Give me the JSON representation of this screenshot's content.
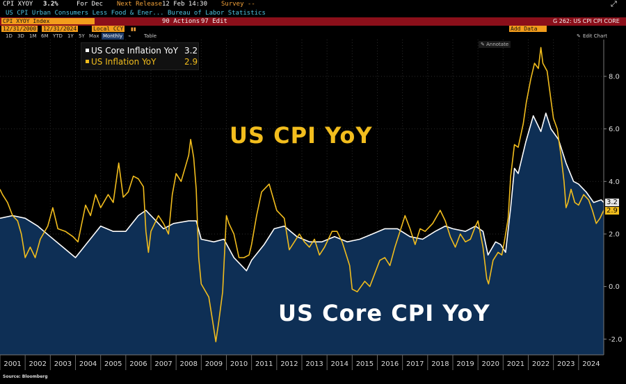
{
  "header": {
    "ticker": "CPI XYOY",
    "value": "3.2%",
    "period": "For Dec",
    "next_release_label": "Next Release",
    "next_release": "12 Feb 14:30",
    "survey": "Survey --",
    "description": "US CPI Urban Consumers Less Food & Ener...",
    "source": "Bureau of Labor Statistics",
    "security": "CPI XYOY Index",
    "actions": "90 Actions",
    "edit": "97 Edit",
    "page": "G 262: US CPI CPI CORE",
    "start_date": "12/31/2000",
    "end_date": "12/31/2024",
    "currency": "Local CCY",
    "add_data": "Add Data",
    "annotate": "Annotate",
    "edit_chart": "Edit Chart",
    "range_buttons": [
      "1D",
      "3D",
      "1M",
      "6M",
      "YTD",
      "1Y",
      "5Y",
      "Max"
    ],
    "frequency": "Monthly",
    "table": "Table"
  },
  "annotations": {
    "headline": "US CPI YoY",
    "core": "US Core CPI YoY"
  },
  "source_note": "Source: Bloomberg",
  "colors": {
    "headline": "#f2bd1d",
    "core_line": "#ffffff",
    "core_fill": "#0e2f55",
    "header_red": "#8b0f1a"
  },
  "chart_data": {
    "type": "line",
    "ylim": [
      -2.6,
      9.4
    ],
    "yticks": [
      "-2.0",
      "0.0",
      "2.0",
      "4.0",
      "6.0",
      "8.0"
    ],
    "ytick_values": [
      -2,
      0,
      2,
      4,
      6,
      8
    ],
    "xlim": [
      2001.0,
      2025.0
    ],
    "years": [
      "2001",
      "2002",
      "2003",
      "2004",
      "2005",
      "2006",
      "2007",
      "2008",
      "2009",
      "2010",
      "2011",
      "2012",
      "2013",
      "2014",
      "2015",
      "2016",
      "2017",
      "2018",
      "2019",
      "2020",
      "2021",
      "2022",
      "2023",
      "2024"
    ],
    "legend_position": "top-left",
    "series": [
      {
        "name": "US Core Inflation YoY",
        "last": "3.2",
        "color": "#ffffff",
        "fill": true,
        "points": [
          [
            2001.0,
            2.6
          ],
          [
            2001.5,
            2.7
          ],
          [
            2002.0,
            2.6
          ],
          [
            2002.5,
            2.3
          ],
          [
            2003.0,
            1.9
          ],
          [
            2003.5,
            1.5
          ],
          [
            2004.0,
            1.1
          ],
          [
            2004.5,
            1.7
          ],
          [
            2005.0,
            2.3
          ],
          [
            2005.5,
            2.1
          ],
          [
            2006.0,
            2.1
          ],
          [
            2006.5,
            2.7
          ],
          [
            2006.8,
            2.9
          ],
          [
            2007.0,
            2.7
          ],
          [
            2007.5,
            2.2
          ],
          [
            2007.9,
            2.4
          ],
          [
            2008.5,
            2.5
          ],
          [
            2008.8,
            2.5
          ],
          [
            2009.0,
            1.8
          ],
          [
            2009.5,
            1.7
          ],
          [
            2009.9,
            1.8
          ],
          [
            2010.3,
            1.1
          ],
          [
            2010.8,
            0.6
          ],
          [
            2011.0,
            1.0
          ],
          [
            2011.5,
            1.6
          ],
          [
            2011.9,
            2.2
          ],
          [
            2012.3,
            2.3
          ],
          [
            2012.8,
            1.9
          ],
          [
            2013.3,
            1.7
          ],
          [
            2013.8,
            1.7
          ],
          [
            2014.3,
            1.9
          ],
          [
            2014.8,
            1.7
          ],
          [
            2015.3,
            1.8
          ],
          [
            2015.8,
            2.0
          ],
          [
            2016.3,
            2.2
          ],
          [
            2016.8,
            2.2
          ],
          [
            2017.3,
            1.9
          ],
          [
            2017.8,
            1.8
          ],
          [
            2018.3,
            2.1
          ],
          [
            2018.7,
            2.3
          ],
          [
            2019.0,
            2.2
          ],
          [
            2019.5,
            2.1
          ],
          [
            2019.9,
            2.3
          ],
          [
            2020.2,
            2.1
          ],
          [
            2020.4,
            1.2
          ],
          [
            2020.7,
            1.7
          ],
          [
            2020.9,
            1.6
          ],
          [
            2021.1,
            1.3
          ],
          [
            2021.3,
            3.0
          ],
          [
            2021.45,
            4.5
          ],
          [
            2021.6,
            4.3
          ],
          [
            2021.9,
            5.5
          ],
          [
            2022.2,
            6.5
          ],
          [
            2022.5,
            5.9
          ],
          [
            2022.7,
            6.6
          ],
          [
            2022.9,
            6.0
          ],
          [
            2023.2,
            5.6
          ],
          [
            2023.5,
            4.7
          ],
          [
            2023.8,
            4.0
          ],
          [
            2024.0,
            3.9
          ],
          [
            2024.3,
            3.6
          ],
          [
            2024.6,
            3.2
          ],
          [
            2024.9,
            3.3
          ],
          [
            2025.0,
            3.2
          ]
        ]
      },
      {
        "name": "US Inflation YoY",
        "last": "2.9",
        "color": "#f2bd1d",
        "fill": false,
        "points": [
          [
            2001.0,
            3.7
          ],
          [
            2001.1,
            3.5
          ],
          [
            2001.3,
            3.2
          ],
          [
            2001.5,
            2.7
          ],
          [
            2001.7,
            2.5
          ],
          [
            2001.85,
            2.0
          ],
          [
            2002.0,
            1.1
          ],
          [
            2002.2,
            1.5
          ],
          [
            2002.4,
            1.1
          ],
          [
            2002.6,
            1.8
          ],
          [
            2002.9,
            2.3
          ],
          [
            2003.1,
            3.0
          ],
          [
            2003.3,
            2.2
          ],
          [
            2003.6,
            2.1
          ],
          [
            2003.9,
            1.9
          ],
          [
            2004.1,
            1.7
          ],
          [
            2004.4,
            3.1
          ],
          [
            2004.6,
            2.7
          ],
          [
            2004.8,
            3.5
          ],
          [
            2005.0,
            3.0
          ],
          [
            2005.3,
            3.5
          ],
          [
            2005.5,
            3.2
          ],
          [
            2005.72,
            4.7
          ],
          [
            2005.9,
            3.4
          ],
          [
            2006.1,
            3.6
          ],
          [
            2006.3,
            4.2
          ],
          [
            2006.5,
            4.1
          ],
          [
            2006.7,
            3.8
          ],
          [
            2006.8,
            2.1
          ],
          [
            2006.9,
            1.3
          ],
          [
            2007.0,
            2.1
          ],
          [
            2007.3,
            2.7
          ],
          [
            2007.5,
            2.4
          ],
          [
            2007.7,
            2.0
          ],
          [
            2007.85,
            3.5
          ],
          [
            2008.0,
            4.3
          ],
          [
            2008.2,
            4.0
          ],
          [
            2008.5,
            5.0
          ],
          [
            2008.58,
            5.6
          ],
          [
            2008.7,
            4.9
          ],
          [
            2008.8,
            3.7
          ],
          [
            2008.9,
            1.1
          ],
          [
            2009.0,
            0.1
          ],
          [
            2009.3,
            -0.4
          ],
          [
            2009.45,
            -1.3
          ],
          [
            2009.58,
            -2.1
          ],
          [
            2009.7,
            -1.3
          ],
          [
            2009.85,
            -0.2
          ],
          [
            2010.0,
            2.7
          ],
          [
            2010.1,
            2.4
          ],
          [
            2010.3,
            2.0
          ],
          [
            2010.5,
            1.1
          ],
          [
            2010.7,
            1.1
          ],
          [
            2010.9,
            1.2
          ],
          [
            2011.0,
            1.6
          ],
          [
            2011.2,
            2.7
          ],
          [
            2011.4,
            3.6
          ],
          [
            2011.7,
            3.9
          ],
          [
            2011.85,
            3.4
          ],
          [
            2012.0,
            2.9
          ],
          [
            2012.3,
            2.6
          ],
          [
            2012.5,
            1.4
          ],
          [
            2012.7,
            1.7
          ],
          [
            2012.9,
            2.0
          ],
          [
            2013.1,
            1.7
          ],
          [
            2013.3,
            1.5
          ],
          [
            2013.5,
            1.8
          ],
          [
            2013.7,
            1.2
          ],
          [
            2013.9,
            1.5
          ],
          [
            2014.2,
            2.1
          ],
          [
            2014.4,
            2.1
          ],
          [
            2014.6,
            1.7
          ],
          [
            2014.9,
            0.8
          ],
          [
            2015.0,
            -0.1
          ],
          [
            2015.2,
            -0.2
          ],
          [
            2015.5,
            0.2
          ],
          [
            2015.7,
            0.0
          ],
          [
            2015.9,
            0.5
          ],
          [
            2016.1,
            1.0
          ],
          [
            2016.3,
            1.1
          ],
          [
            2016.5,
            0.8
          ],
          [
            2016.7,
            1.5
          ],
          [
            2016.9,
            2.1
          ],
          [
            2017.1,
            2.7
          ],
          [
            2017.3,
            2.2
          ],
          [
            2017.5,
            1.6
          ],
          [
            2017.7,
            2.2
          ],
          [
            2017.9,
            2.1
          ],
          [
            2018.2,
            2.4
          ],
          [
            2018.5,
            2.9
          ],
          [
            2018.7,
            2.5
          ],
          [
            2018.9,
            1.9
          ],
          [
            2019.1,
            1.5
          ],
          [
            2019.3,
            2.0
          ],
          [
            2019.5,
            1.7
          ],
          [
            2019.7,
            1.8
          ],
          [
            2019.9,
            2.3
          ],
          [
            2020.0,
            2.5
          ],
          [
            2020.2,
            1.5
          ],
          [
            2020.35,
            0.3
          ],
          [
            2020.42,
            0.1
          ],
          [
            2020.6,
            1.0
          ],
          [
            2020.8,
            1.3
          ],
          [
            2020.95,
            1.2
          ],
          [
            2021.05,
            1.7
          ],
          [
            2021.2,
            2.6
          ],
          [
            2021.3,
            4.2
          ],
          [
            2021.4,
            5.0
          ],
          [
            2021.45,
            5.4
          ],
          [
            2021.6,
            5.3
          ],
          [
            2021.8,
            6.2
          ],
          [
            2021.92,
            7.0
          ],
          [
            2022.1,
            7.9
          ],
          [
            2022.25,
            8.5
          ],
          [
            2022.4,
            8.3
          ],
          [
            2022.5,
            9.1
          ],
          [
            2022.58,
            8.5
          ],
          [
            2022.75,
            8.2
          ],
          [
            2022.9,
            7.1
          ],
          [
            2023.0,
            6.4
          ],
          [
            2023.15,
            6.0
          ],
          [
            2023.3,
            5.0
          ],
          [
            2023.42,
            4.0
          ],
          [
            2023.5,
            3.0
          ],
          [
            2023.58,
            3.2
          ],
          [
            2023.7,
            3.7
          ],
          [
            2023.85,
            3.2
          ],
          [
            2024.0,
            3.1
          ],
          [
            2024.2,
            3.5
          ],
          [
            2024.4,
            3.3
          ],
          [
            2024.55,
            2.9
          ],
          [
            2024.7,
            2.4
          ],
          [
            2024.85,
            2.6
          ],
          [
            2025.0,
            2.9
          ]
        ]
      }
    ]
  }
}
